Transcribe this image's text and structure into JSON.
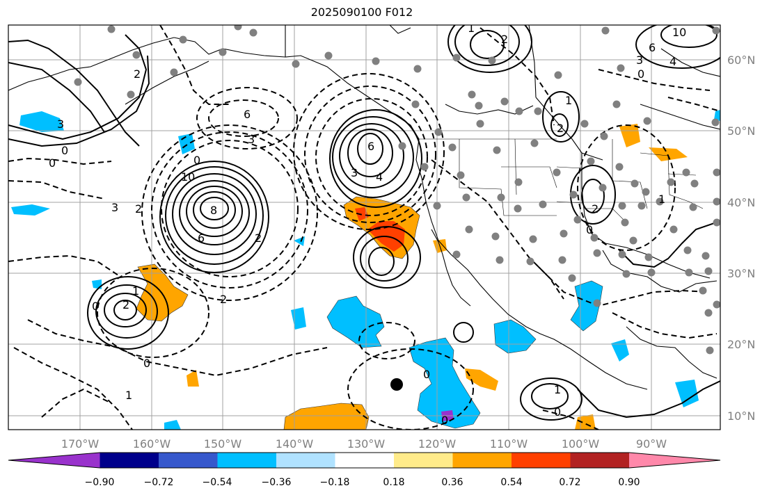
{
  "title": "2025090100 F012",
  "map": {
    "lat_labels": [
      "60°N",
      "50°N",
      "40°N",
      "30°N",
      "20°N",
      "10°N"
    ],
    "lon_labels": [
      "170°W",
      "160°W",
      "150°W",
      "140°W",
      "130°W",
      "120°W",
      "110°W",
      "100°W",
      "90°W"
    ],
    "contour_labels": [
      {
        "text": "8"
      },
      {
        "text": "6"
      },
      {
        "text": "10"
      },
      {
        "text": "2"
      },
      {
        "text": "6"
      },
      {
        "text": "3"
      },
      {
        "text": "0"
      },
      {
        "text": "0"
      },
      {
        "text": "6"
      },
      {
        "text": "4"
      },
      {
        "text": "3"
      },
      {
        "text": "2"
      },
      {
        "text": "1"
      },
      {
        "text": "2"
      },
      {
        "text": "1"
      },
      {
        "text": "2"
      },
      {
        "text": "0"
      },
      {
        "text": "2"
      },
      {
        "text": "0"
      },
      {
        "text": "1"
      },
      {
        "text": "0"
      },
      {
        "text": "10"
      },
      {
        "text": "6"
      },
      {
        "text": "4"
      },
      {
        "text": "3"
      },
      {
        "text": "0"
      },
      {
        "text": "2"
      },
      {
        "text": "2"
      },
      {
        "text": "1"
      },
      {
        "text": "0"
      },
      {
        "text": "1"
      },
      {
        "text": "0"
      },
      {
        "text": "0"
      },
      {
        "text": "1"
      },
      {
        "text": "2"
      },
      {
        "text": "3"
      },
      {
        "text": "3"
      },
      {
        "text": "0"
      }
    ],
    "colors": {
      "positive_shade": "#ffa500",
      "strong_positive_shade": "#ff4000",
      "negative_shade": "#00bfff",
      "grid": "#a0a0a0",
      "station": "#808080"
    }
  },
  "colorbar": {
    "tick_labels": [
      "−0.90",
      "−0.72",
      "−0.54",
      "−0.36",
      "−0.18",
      "0.18",
      "0.36",
      "0.54",
      "0.72",
      "0.90"
    ],
    "colors": [
      "#9932cc",
      "#00008b",
      "#3658cc",
      "#00bfff",
      "#b0e2ff",
      "#ffffff",
      "#ffeb8a",
      "#ffa500",
      "#ff4000",
      "#b22222",
      "#ff88aa"
    ]
  }
}
